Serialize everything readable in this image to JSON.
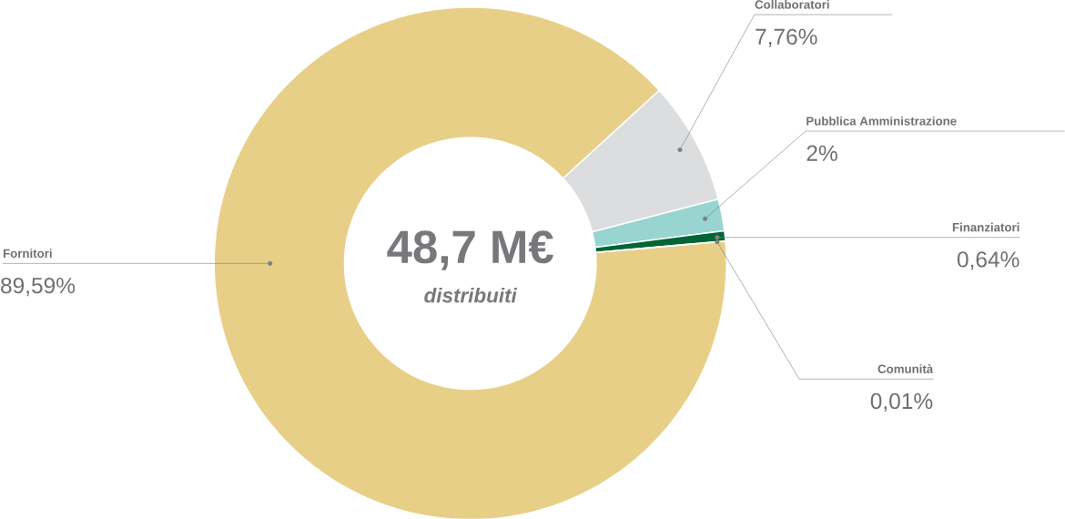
{
  "chart_data": {
    "type": "donut",
    "categories": [
      "Fornitori",
      "Collaboratori",
      "Pubblica Amministrazione",
      "Finanziatori",
      "Comunità"
    ],
    "values": [
      89.59,
      7.76,
      2,
      0.64,
      0.01
    ],
    "value_labels": [
      "89,59%",
      "7,76%",
      "2%",
      "0,64%",
      "0,01%"
    ],
    "colors": [
      "#e8cf88",
      "#dcdddf",
      "#98d4d0",
      "#006633",
      "#1f5f3a"
    ],
    "annotations": [
      "48,7 M€",
      "distribuiti"
    ]
  }
}
